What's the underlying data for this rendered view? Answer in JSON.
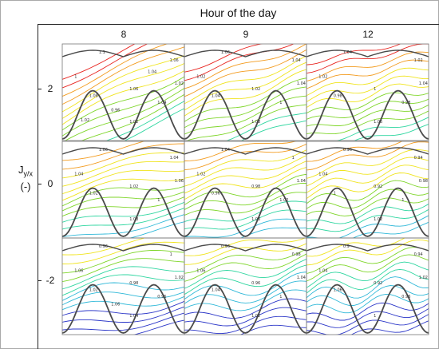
{
  "header": {
    "title": "Hour of the day"
  },
  "columns": [
    "8",
    "9",
    "12"
  ],
  "rows": [
    "2",
    "0",
    "-2"
  ],
  "y_axis": {
    "symbol": "J",
    "subscript": "y/x",
    "unit": "(-)"
  },
  "panels": [
    {
      "hour": "8",
      "j": "2",
      "labels": [
        "1.1",
        "1.06",
        "1.06",
        "1.04",
        "1.02",
        "1.02",
        "1",
        "1.08",
        "0.96",
        "1.04",
        "1.02"
      ]
    },
    {
      "hour": "9",
      "j": "2",
      "labels": [
        "1.06",
        "1.04",
        "1.02",
        "1",
        "1.08",
        "1.04",
        "1.02",
        "1.04"
      ]
    },
    {
      "hour": "12",
      "j": "2",
      "labels": [
        "1.04",
        "1.02",
        "1",
        "0.98",
        "1.06",
        "1.04",
        "1.02",
        "0.98"
      ]
    },
    {
      "hour": "8",
      "j": "0",
      "labels": [
        "1.06",
        "1.04",
        "1.02",
        "1",
        "1.08",
        "1.06",
        "1.04",
        "1.02"
      ]
    },
    {
      "hour": "9",
      "j": "0",
      "labels": [
        "1.04",
        "1",
        "0.98",
        "1.02",
        "1.06",
        "1.04",
        "1.02",
        "0.96"
      ]
    },
    {
      "hour": "12",
      "j": "0",
      "labels": [
        "0.96",
        "0.94",
        "0.92",
        "1",
        "1.02",
        "0.98",
        "1.04",
        "1"
      ]
    },
    {
      "hour": "8",
      "j": "-2",
      "labels": [
        "0.96",
        "1",
        "0.98",
        "0.96",
        "1.04",
        "1.02",
        "1.06",
        "1.02",
        "1.06"
      ]
    },
    {
      "hour": "9",
      "j": "-2",
      "labels": [
        "0.96",
        "0.98",
        "0.96",
        "1",
        "1.02",
        "1.04",
        "1.06",
        "1.04"
      ]
    },
    {
      "hour": "12",
      "j": "-2",
      "labels": [
        "0.9",
        "0.94",
        "0.92",
        "0.96",
        "1",
        "1.02",
        "1.04",
        "1.06"
      ]
    }
  ],
  "colors": {
    "max": "#e8241f",
    "high": "#f39b1e",
    "mid": "#f0e41e",
    "midlow": "#7fd62a",
    "low": "#2fd6a0",
    "lower": "#2fb8d8",
    "min": "#2b36c8",
    "terrain": "#4a4a4a"
  }
}
